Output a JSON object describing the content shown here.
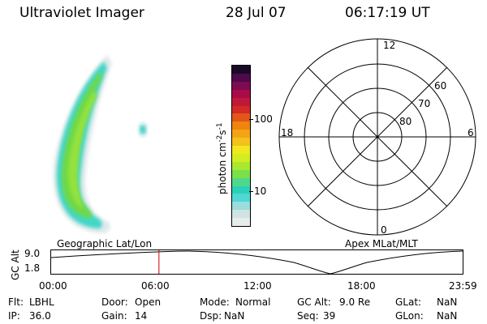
{
  "header": {
    "instrument": "Ultraviolet Imager",
    "date": "28 Jul 07",
    "time": "06:17:19 UT"
  },
  "colorbar": {
    "label_prefix": "photon cm",
    "label_exp1": "-2",
    "label_mid": "s",
    "label_exp2": "-1",
    "ticks": [
      "100",
      "10"
    ],
    "colors": [
      "#e6ecec",
      "#cfe3e3",
      "#9bdcdc",
      "#4fd8d4",
      "#2bd0b8",
      "#4fd88a",
      "#7be04a",
      "#a8e830",
      "#d2ee20",
      "#f0e820",
      "#f4c21c",
      "#f3a414",
      "#ef8410",
      "#e2561a",
      "#d22a24",
      "#c01838",
      "#a80c48",
      "#7e0a52",
      "#4e0a4a",
      "#1a0a2a"
    ]
  },
  "polar_plot": {
    "mlt_labels": {
      "top": "12",
      "left": "18",
      "right": "6",
      "bottom": "0"
    },
    "lat_labels": [
      "60",
      "70",
      "80"
    ]
  },
  "timeline": {
    "left_title": "Geographic Lat/Lon",
    "right_title": "Apex MLat/MLT",
    "ylabel": "GC Alt",
    "y_ticks": [
      "9.0",
      "1.8"
    ],
    "x_ticks": [
      "00:00",
      "06:00",
      "12:00",
      "18:00",
      "23:59"
    ],
    "current_time_fraction": 0.262
  },
  "status": {
    "row1": [
      {
        "key": "Flt:",
        "val": "LBHL"
      },
      {
        "key": "Door:",
        "val": "Open"
      },
      {
        "key": "Mode:",
        "val": "Normal"
      },
      {
        "key": "GC Alt:",
        "val": "9.0 Re"
      },
      {
        "key": "GLat:",
        "val": "NaN"
      }
    ],
    "row2": [
      {
        "key": "IP:",
        "val": "36.0"
      },
      {
        "key": "Gain:",
        "val": "14"
      },
      {
        "key": "Dsp:",
        "val": "NaN"
      },
      {
        "key": "Seq:",
        "val": "39"
      },
      {
        "key": "GLon:",
        "val": "NaN"
      }
    ]
  }
}
